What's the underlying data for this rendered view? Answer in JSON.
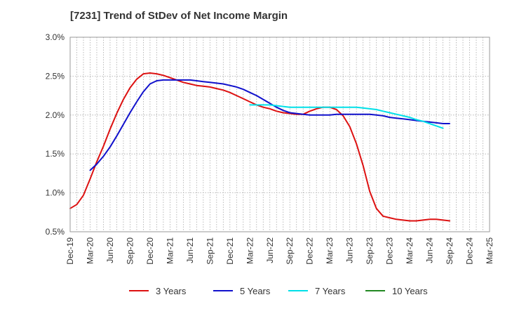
{
  "title": "[7231]  Trend of StDev of Net Income Margin",
  "chart_data": {
    "type": "line",
    "title": "[7231]  Trend of StDev of Net Income Margin",
    "xlabel": "",
    "ylabel": "",
    "x_tick_labels": [
      "Dec-19",
      "Mar-20",
      "Jun-20",
      "Sep-20",
      "Dec-20",
      "Mar-21",
      "Jun-21",
      "Sep-21",
      "Dec-21",
      "Mar-22",
      "Jun-22",
      "Sep-22",
      "Dec-22",
      "Mar-23",
      "Jun-23",
      "Sep-23",
      "Dec-23",
      "Mar-24",
      "Jun-24",
      "Sep-24",
      "Dec-24",
      "Mar-25"
    ],
    "y_tick_labels": [
      "0.5%",
      "1.0%",
      "1.5%",
      "2.0%",
      "2.5%",
      "3.0%"
    ],
    "ylim": [
      0.5,
      3.0
    ],
    "y_unit": "%",
    "grid": true,
    "legend_position": "bottom",
    "series": [
      {
        "name": "3 Years",
        "color": "#dd1111",
        "points": [
          [
            "Dec-19",
            0.8
          ],
          [
            "Jan-20",
            0.85
          ],
          [
            "Feb-20",
            0.97
          ],
          [
            "Mar-20",
            1.18
          ],
          [
            "Apr-20",
            1.4
          ],
          [
            "May-20",
            1.6
          ],
          [
            "Jun-20",
            1.82
          ],
          [
            "Jul-20",
            2.02
          ],
          [
            "Aug-20",
            2.2
          ],
          [
            "Sep-20",
            2.35
          ],
          [
            "Oct-20",
            2.46
          ],
          [
            "Nov-20",
            2.53
          ],
          [
            "Dec-20",
            2.54
          ],
          [
            "Jan-21",
            2.53
          ],
          [
            "Feb-21",
            2.51
          ],
          [
            "Mar-21",
            2.48
          ],
          [
            "Apr-21",
            2.45
          ],
          [
            "May-21",
            2.42
          ],
          [
            "Jun-21",
            2.4
          ],
          [
            "Jul-21",
            2.38
          ],
          [
            "Aug-21",
            2.37
          ],
          [
            "Sep-21",
            2.36
          ],
          [
            "Oct-21",
            2.34
          ],
          [
            "Nov-21",
            2.32
          ],
          [
            "Dec-21",
            2.29
          ],
          [
            "Jan-22",
            2.25
          ],
          [
            "Feb-22",
            2.21
          ],
          [
            "Mar-22",
            2.17
          ],
          [
            "Apr-22",
            2.13
          ],
          [
            "May-22",
            2.1
          ],
          [
            "Jun-22",
            2.08
          ],
          [
            "Jul-22",
            2.05
          ],
          [
            "Aug-22",
            2.03
          ],
          [
            "Sep-22",
            2.02
          ],
          [
            "Oct-22",
            2.01
          ],
          [
            "Nov-22",
            2.01
          ],
          [
            "Dec-22",
            2.05
          ],
          [
            "Jan-23",
            2.08
          ],
          [
            "Feb-23",
            2.1
          ],
          [
            "Mar-23",
            2.1
          ],
          [
            "Apr-23",
            2.07
          ],
          [
            "May-23",
            1.99
          ],
          [
            "Jun-23",
            1.85
          ],
          [
            "Jul-23",
            1.63
          ],
          [
            "Aug-23",
            1.35
          ],
          [
            "Sep-23",
            1.02
          ],
          [
            "Oct-23",
            0.8
          ],
          [
            "Nov-23",
            0.7
          ],
          [
            "Dec-23",
            0.68
          ],
          [
            "Jan-24",
            0.66
          ],
          [
            "Feb-24",
            0.65
          ],
          [
            "Mar-24",
            0.64
          ],
          [
            "Apr-24",
            0.64
          ],
          [
            "May-24",
            0.65
          ],
          [
            "Jun-24",
            0.66
          ],
          [
            "Jul-24",
            0.66
          ],
          [
            "Aug-24",
            0.65
          ],
          [
            "Sep-24",
            0.64
          ]
        ]
      },
      {
        "name": "5 Years",
        "color": "#1111cc",
        "points": [
          [
            "Mar-20",
            1.29
          ],
          [
            "Apr-20",
            1.37
          ],
          [
            "May-20",
            1.47
          ],
          [
            "Jun-20",
            1.59
          ],
          [
            "Jul-20",
            1.73
          ],
          [
            "Aug-20",
            1.88
          ],
          [
            "Sep-20",
            2.03
          ],
          [
            "Oct-20",
            2.17
          ],
          [
            "Nov-20",
            2.3
          ],
          [
            "Dec-20",
            2.4
          ],
          [
            "Jan-21",
            2.44
          ],
          [
            "Feb-21",
            2.45
          ],
          [
            "Mar-21",
            2.45
          ],
          [
            "Apr-21",
            2.45
          ],
          [
            "May-21",
            2.45
          ],
          [
            "Jun-21",
            2.45
          ],
          [
            "Jul-21",
            2.44
          ],
          [
            "Aug-21",
            2.43
          ],
          [
            "Sep-21",
            2.42
          ],
          [
            "Oct-21",
            2.41
          ],
          [
            "Nov-21",
            2.4
          ],
          [
            "Dec-21",
            2.38
          ],
          [
            "Jan-22",
            2.36
          ],
          [
            "Feb-22",
            2.33
          ],
          [
            "Mar-22",
            2.29
          ],
          [
            "Apr-22",
            2.25
          ],
          [
            "May-22",
            2.2
          ],
          [
            "Jun-22",
            2.15
          ],
          [
            "Jul-22",
            2.1
          ],
          [
            "Aug-22",
            2.06
          ],
          [
            "Sep-22",
            2.03
          ],
          [
            "Oct-22",
            2.02
          ],
          [
            "Nov-22",
            2.01
          ],
          [
            "Dec-22",
            2.0
          ],
          [
            "Jan-23",
            2.0
          ],
          [
            "Feb-23",
            2.0
          ],
          [
            "Mar-23",
            2.0
          ],
          [
            "Apr-23",
            2.01
          ],
          [
            "May-23",
            2.01
          ],
          [
            "Jun-23",
            2.01
          ],
          [
            "Jul-23",
            2.01
          ],
          [
            "Aug-23",
            2.01
          ],
          [
            "Sep-23",
            2.01
          ],
          [
            "Oct-23",
            2.0
          ],
          [
            "Nov-23",
            1.99
          ],
          [
            "Dec-23",
            1.97
          ],
          [
            "Jan-24",
            1.96
          ],
          [
            "Feb-24",
            1.95
          ],
          [
            "Mar-24",
            1.94
          ],
          [
            "Apr-24",
            1.93
          ],
          [
            "May-24",
            1.92
          ],
          [
            "Jun-24",
            1.91
          ],
          [
            "Jul-24",
            1.9
          ],
          [
            "Aug-24",
            1.89
          ],
          [
            "Sep-24",
            1.89
          ]
        ]
      },
      {
        "name": "7 Years",
        "color": "#00e0e8",
        "points": [
          [
            "Mar-22",
            2.13
          ],
          [
            "Apr-22",
            2.13
          ],
          [
            "May-22",
            2.13
          ],
          [
            "Jun-22",
            2.13
          ],
          [
            "Jul-22",
            2.12
          ],
          [
            "Aug-22",
            2.11
          ],
          [
            "Sep-22",
            2.1
          ],
          [
            "Oct-22",
            2.1
          ],
          [
            "Nov-22",
            2.1
          ],
          [
            "Dec-22",
            2.1
          ],
          [
            "Jan-23",
            2.1
          ],
          [
            "Feb-23",
            2.1
          ],
          [
            "Mar-23",
            2.1
          ],
          [
            "Apr-23",
            2.1
          ],
          [
            "May-23",
            2.1
          ],
          [
            "Jun-23",
            2.1
          ],
          [
            "Jul-23",
            2.1
          ],
          [
            "Aug-23",
            2.09
          ],
          [
            "Sep-23",
            2.08
          ],
          [
            "Oct-23",
            2.07
          ],
          [
            "Nov-23",
            2.05
          ],
          [
            "Dec-23",
            2.03
          ],
          [
            "Jan-24",
            2.01
          ],
          [
            "Feb-24",
            1.99
          ],
          [
            "Mar-24",
            1.97
          ],
          [
            "Apr-24",
            1.94
          ],
          [
            "May-24",
            1.92
          ],
          [
            "Jun-24",
            1.89
          ],
          [
            "Jul-24",
            1.86
          ],
          [
            "Aug-24",
            1.83
          ]
        ]
      },
      {
        "name": "10 Years",
        "color": "#228822",
        "points": []
      }
    ]
  }
}
